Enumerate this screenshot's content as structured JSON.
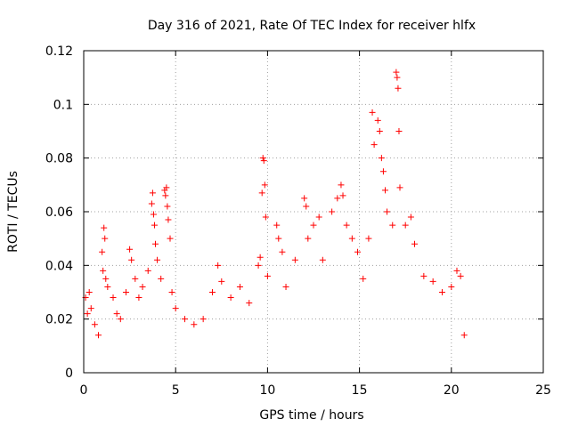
{
  "chart_data": {
    "type": "scatter",
    "title": "Day 316 of 2021, Rate Of TEC Index for receiver hlfx",
    "xlabel": "GPS time / hours",
    "ylabel": "ROTI / TECUs",
    "xlim": [
      0,
      25
    ],
    "ylim": [
      0,
      0.12
    ],
    "xticks": [
      0,
      5,
      10,
      15,
      20,
      25
    ],
    "xtick_labels": [
      "0",
      "5",
      "10",
      "15",
      "20",
      "25"
    ],
    "yticks": [
      0,
      0.02,
      0.04,
      0.06,
      0.08,
      0.1,
      0.12
    ],
    "ytick_labels": [
      "0",
      "0.02",
      "0.04",
      "0.06",
      "0.08",
      "0.1",
      "0.12"
    ],
    "grid": true,
    "marker": "+",
    "color": "#ff0000",
    "series": [
      {
        "name": "ROTI",
        "points": [
          [
            0.1,
            0.028
          ],
          [
            0.2,
            0.022
          ],
          [
            0.3,
            0.03
          ],
          [
            0.4,
            0.024
          ],
          [
            0.6,
            0.018
          ],
          [
            0.8,
            0.014
          ],
          [
            1.0,
            0.045
          ],
          [
            1.05,
            0.038
          ],
          [
            1.1,
            0.054
          ],
          [
            1.15,
            0.05
          ],
          [
            1.2,
            0.035
          ],
          [
            1.3,
            0.032
          ],
          [
            1.6,
            0.028
          ],
          [
            1.8,
            0.022
          ],
          [
            2.0,
            0.02
          ],
          [
            2.3,
            0.03
          ],
          [
            2.5,
            0.046
          ],
          [
            2.6,
            0.042
          ],
          [
            2.8,
            0.035
          ],
          [
            3.0,
            0.028
          ],
          [
            3.2,
            0.032
          ],
          [
            3.5,
            0.038
          ],
          [
            3.7,
            0.063
          ],
          [
            3.75,
            0.067
          ],
          [
            3.8,
            0.059
          ],
          [
            3.85,
            0.055
          ],
          [
            3.9,
            0.048
          ],
          [
            4.0,
            0.042
          ],
          [
            4.2,
            0.035
          ],
          [
            4.4,
            0.068
          ],
          [
            4.45,
            0.066
          ],
          [
            4.5,
            0.069
          ],
          [
            4.55,
            0.062
          ],
          [
            4.6,
            0.057
          ],
          [
            4.7,
            0.05
          ],
          [
            4.8,
            0.03
          ],
          [
            5.0,
            0.024
          ],
          [
            5.5,
            0.02
          ],
          [
            6.0,
            0.018
          ],
          [
            6.5,
            0.02
          ],
          [
            7.0,
            0.03
          ],
          [
            7.3,
            0.04
          ],
          [
            7.5,
            0.034
          ],
          [
            8.0,
            0.028
          ],
          [
            8.5,
            0.032
          ],
          [
            9.0,
            0.026
          ],
          [
            9.5,
            0.04
          ],
          [
            9.6,
            0.043
          ],
          [
            9.7,
            0.067
          ],
          [
            9.75,
            0.08
          ],
          [
            9.8,
            0.079
          ],
          [
            9.85,
            0.07
          ],
          [
            9.9,
            0.058
          ],
          [
            10.0,
            0.036
          ],
          [
            10.5,
            0.055
          ],
          [
            10.6,
            0.05
          ],
          [
            10.8,
            0.045
          ],
          [
            11.0,
            0.032
          ],
          [
            11.5,
            0.042
          ],
          [
            12.0,
            0.065
          ],
          [
            12.1,
            0.062
          ],
          [
            12.2,
            0.05
          ],
          [
            12.5,
            0.055
          ],
          [
            12.8,
            0.058
          ],
          [
            13.0,
            0.042
          ],
          [
            13.5,
            0.06
          ],
          [
            13.8,
            0.065
          ],
          [
            14.0,
            0.07
          ],
          [
            14.1,
            0.066
          ],
          [
            14.3,
            0.055
          ],
          [
            14.6,
            0.05
          ],
          [
            14.9,
            0.045
          ],
          [
            15.2,
            0.035
          ],
          [
            15.5,
            0.05
          ],
          [
            15.7,
            0.097
          ],
          [
            15.8,
            0.085
          ],
          [
            16.0,
            0.094
          ],
          [
            16.1,
            0.09
          ],
          [
            16.2,
            0.08
          ],
          [
            16.3,
            0.075
          ],
          [
            16.4,
            0.068
          ],
          [
            16.5,
            0.06
          ],
          [
            16.8,
            0.055
          ],
          [
            17.0,
            0.112
          ],
          [
            17.05,
            0.11
          ],
          [
            17.1,
            0.106
          ],
          [
            17.15,
            0.09
          ],
          [
            17.2,
            0.069
          ],
          [
            17.5,
            0.055
          ],
          [
            17.8,
            0.058
          ],
          [
            18.0,
            0.048
          ],
          [
            18.5,
            0.036
          ],
          [
            19.0,
            0.034
          ],
          [
            19.5,
            0.03
          ],
          [
            20.0,
            0.032
          ],
          [
            20.3,
            0.038
          ],
          [
            20.5,
            0.036
          ],
          [
            20.7,
            0.014
          ]
        ]
      }
    ]
  }
}
